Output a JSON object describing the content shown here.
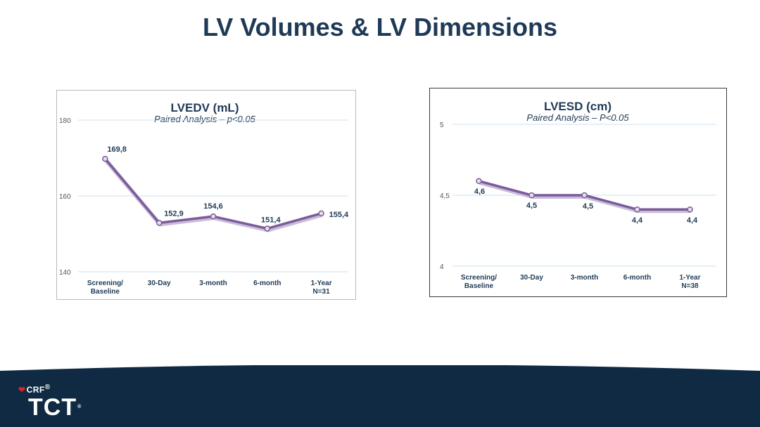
{
  "slide": {
    "title": "LV Volumes & LV Dimensions"
  },
  "logo": {
    "crf": "CRF",
    "crf_mark": "®",
    "tct": "TCT",
    "tct_mark": "®"
  },
  "colors": {
    "title": "#1f3a57",
    "line": "#7b5c9a",
    "footer": "#0f2a42",
    "chart_text": "#1f3a57"
  },
  "chart_data": [
    {
      "type": "line",
      "title": "LVEDV (mL)",
      "subtitle": "Paired Analysis – p<0.05",
      "categories": [
        "Screening/\nBaseline",
        "30-Day",
        "3-month",
        "6-month",
        "1-Year\nN=31"
      ],
      "values": [
        169.8,
        152.9,
        154.6,
        151.4,
        155.4
      ],
      "data_labels": [
        "169,8",
        "152,9",
        "154,6",
        "151,4",
        "155,4"
      ],
      "y_ticks": [
        140,
        160,
        180
      ],
      "y_tick_labels": [
        "140",
        "160",
        "180"
      ],
      "ylim": [
        140,
        180
      ],
      "grid": true,
      "xlabel": "",
      "ylabel": ""
    },
    {
      "type": "line",
      "title": "LVESD (cm)",
      "subtitle": "Paired Analysis – P<0.05",
      "categories": [
        "Screening/\nBaseline",
        "30-Day",
        "3-month",
        "6-month",
        "1-Year\nN=38"
      ],
      "values": [
        4.6,
        4.5,
        4.5,
        4.4,
        4.4
      ],
      "data_labels": [
        "4,6",
        "4,5",
        "4,5",
        "4,4",
        "4,4"
      ],
      "y_ticks": [
        4,
        4.5,
        5
      ],
      "y_tick_labels": [
        "4",
        "4,5",
        "5"
      ],
      "ylim": [
        4,
        5
      ],
      "grid": true,
      "xlabel": "",
      "ylabel": ""
    }
  ]
}
